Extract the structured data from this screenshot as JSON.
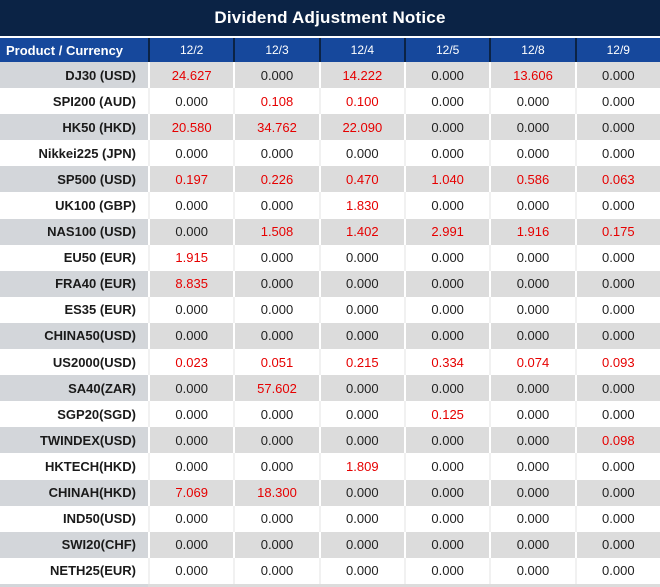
{
  "title": "Dividend Adjustment Notice",
  "colors": {
    "title_bg": "#0b2345",
    "header_bg": "#16489c",
    "row_gray": "#dcdcdc",
    "row_gray_product": "#d3d6da",
    "value_red": "#e60000",
    "value_black": "#222222",
    "header_text": "#ffffff"
  },
  "table": {
    "product_header": "Product / Currency",
    "date_columns": [
      "12/2",
      "12/3",
      "12/4",
      "12/5",
      "12/8",
      "12/9"
    ],
    "zero_value": "0.000",
    "rows": [
      {
        "product": "DJ30 (USD)",
        "values": [
          "24.627",
          "0.000",
          "14.222",
          "0.000",
          "13.606",
          "0.000"
        ]
      },
      {
        "product": "SPI200 (AUD)",
        "values": [
          "0.000",
          "0.108",
          "0.100",
          "0.000",
          "0.000",
          "0.000"
        ]
      },
      {
        "product": "HK50 (HKD)",
        "values": [
          "20.580",
          "34.762",
          "22.090",
          "0.000",
          "0.000",
          "0.000"
        ]
      },
      {
        "product": "Nikkei225 (JPN)",
        "values": [
          "0.000",
          "0.000",
          "0.000",
          "0.000",
          "0.000",
          "0.000"
        ]
      },
      {
        "product": "SP500 (USD)",
        "values": [
          "0.197",
          "0.226",
          "0.470",
          "1.040",
          "0.586",
          "0.063"
        ]
      },
      {
        "product": "UK100 (GBP)",
        "values": [
          "0.000",
          "0.000",
          "1.830",
          "0.000",
          "0.000",
          "0.000"
        ]
      },
      {
        "product": "NAS100 (USD)",
        "values": [
          "0.000",
          "1.508",
          "1.402",
          "2.991",
          "1.916",
          "0.175"
        ]
      },
      {
        "product": "EU50 (EUR)",
        "values": [
          "1.915",
          "0.000",
          "0.000",
          "0.000",
          "0.000",
          "0.000"
        ]
      },
      {
        "product": "FRA40 (EUR)",
        "values": [
          "8.835",
          "0.000",
          "0.000",
          "0.000",
          "0.000",
          "0.000"
        ]
      },
      {
        "product": "ES35 (EUR)",
        "values": [
          "0.000",
          "0.000",
          "0.000",
          "0.000",
          "0.000",
          "0.000"
        ]
      },
      {
        "product": "CHINA50(USD)",
        "values": [
          "0.000",
          "0.000",
          "0.000",
          "0.000",
          "0.000",
          "0.000"
        ]
      },
      {
        "product": "US2000(USD)",
        "values": [
          "0.023",
          "0.051",
          "0.215",
          "0.334",
          "0.074",
          "0.093"
        ]
      },
      {
        "product": "SA40(ZAR)",
        "values": [
          "0.000",
          "57.602",
          "0.000",
          "0.000",
          "0.000",
          "0.000"
        ]
      },
      {
        "product": "SGP20(SGD)",
        "values": [
          "0.000",
          "0.000",
          "0.000",
          "0.125",
          "0.000",
          "0.000"
        ]
      },
      {
        "product": "TWINDEX(USD)",
        "values": [
          "0.000",
          "0.000",
          "0.000",
          "0.000",
          "0.000",
          "0.098"
        ]
      },
      {
        "product": "HKTECH(HKD)",
        "values": [
          "0.000",
          "0.000",
          "1.809",
          "0.000",
          "0.000",
          "0.000"
        ]
      },
      {
        "product": "CHINAH(HKD)",
        "values": [
          "7.069",
          "18.300",
          "0.000",
          "0.000",
          "0.000",
          "0.000"
        ]
      },
      {
        "product": "IND50(USD)",
        "values": [
          "0.000",
          "0.000",
          "0.000",
          "0.000",
          "0.000",
          "0.000"
        ]
      },
      {
        "product": "SWI20(CHF)",
        "values": [
          "0.000",
          "0.000",
          "0.000",
          "0.000",
          "0.000",
          "0.000"
        ]
      },
      {
        "product": "NETH25(EUR)",
        "values": [
          "0.000",
          "0.000",
          "0.000",
          "0.000",
          "0.000",
          "0.000"
        ]
      }
    ]
  }
}
